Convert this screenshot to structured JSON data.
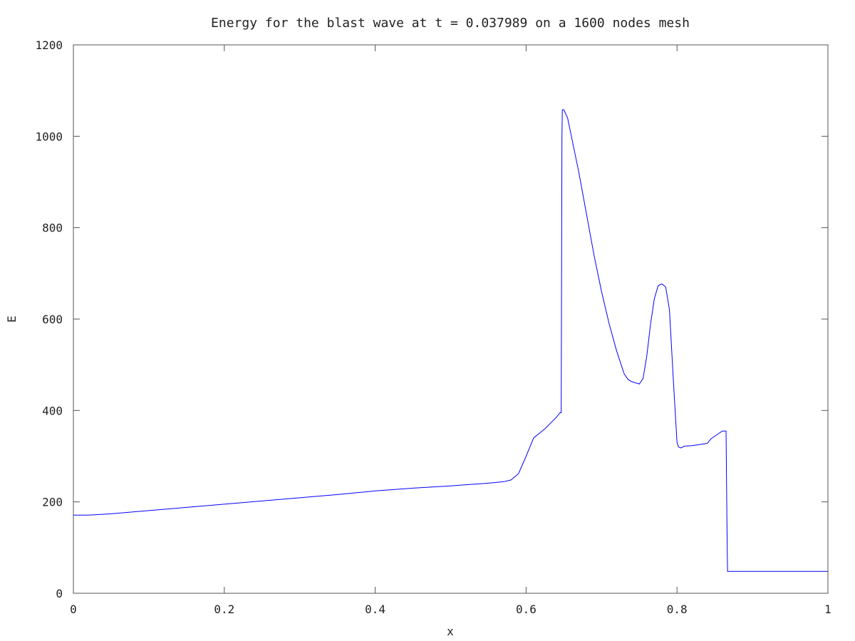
{
  "chart_data": {
    "type": "line",
    "title": "Energy for the blast wave at t = 0.037989 on a 1600 nodes mesh",
    "xlabel": "x",
    "ylabel": "E",
    "xlim": [
      0,
      1
    ],
    "ylim": [
      0,
      1200
    ],
    "xticks": [
      0,
      0.2,
      0.4,
      0.6,
      0.8,
      1
    ],
    "xtick_labels": [
      "0",
      "0.2",
      "0.4",
      "0.6",
      "0.8",
      "1"
    ],
    "yticks": [
      0,
      200,
      400,
      600,
      800,
      1000,
      1200
    ],
    "ytick_labels": [
      "0",
      "200",
      "400",
      "600",
      "800",
      "1000",
      "1200"
    ],
    "grid": false,
    "legend": "none",
    "series": [
      {
        "color": "#0000ff",
        "x": [
          0,
          0.02,
          0.05,
          0.1,
          0.15,
          0.2,
          0.25,
          0.3,
          0.35,
          0.4,
          0.45,
          0.5,
          0.55,
          0.57,
          0.58,
          0.59,
          0.6,
          0.61,
          0.625,
          0.64,
          0.645,
          0.6465,
          0.6475,
          0.648,
          0.65,
          0.655,
          0.66,
          0.67,
          0.68,
          0.69,
          0.7,
          0.71,
          0.72,
          0.73,
          0.735,
          0.74,
          0.75,
          0.755,
          0.76,
          0.765,
          0.77,
          0.775,
          0.78,
          0.785,
          0.79,
          0.795,
          0.8,
          0.802,
          0.805,
          0.81,
          0.82,
          0.84,
          0.845,
          0.86,
          0.865,
          0.8665,
          0.867,
          0.87,
          0.9,
          0.95,
          1.0
        ],
        "y": [
          171,
          171,
          174,
          181,
          188,
          195,
          202,
          209,
          216,
          224,
          230,
          235,
          241,
          244,
          248,
          262,
          300,
          340,
          360,
          385,
          395,
          395,
          1000,
          1058,
          1058,
          1040,
          1000,
          920,
          830,
          740,
          660,
          590,
          530,
          480,
          468,
          463,
          458,
          470,
          520,
          590,
          645,
          673,
          677,
          670,
          620,
          470,
          330,
          320,
          318,
          322,
          323,
          328,
          338,
          355,
          355,
          100,
          48,
          48,
          48,
          48,
          48
        ]
      }
    ]
  }
}
